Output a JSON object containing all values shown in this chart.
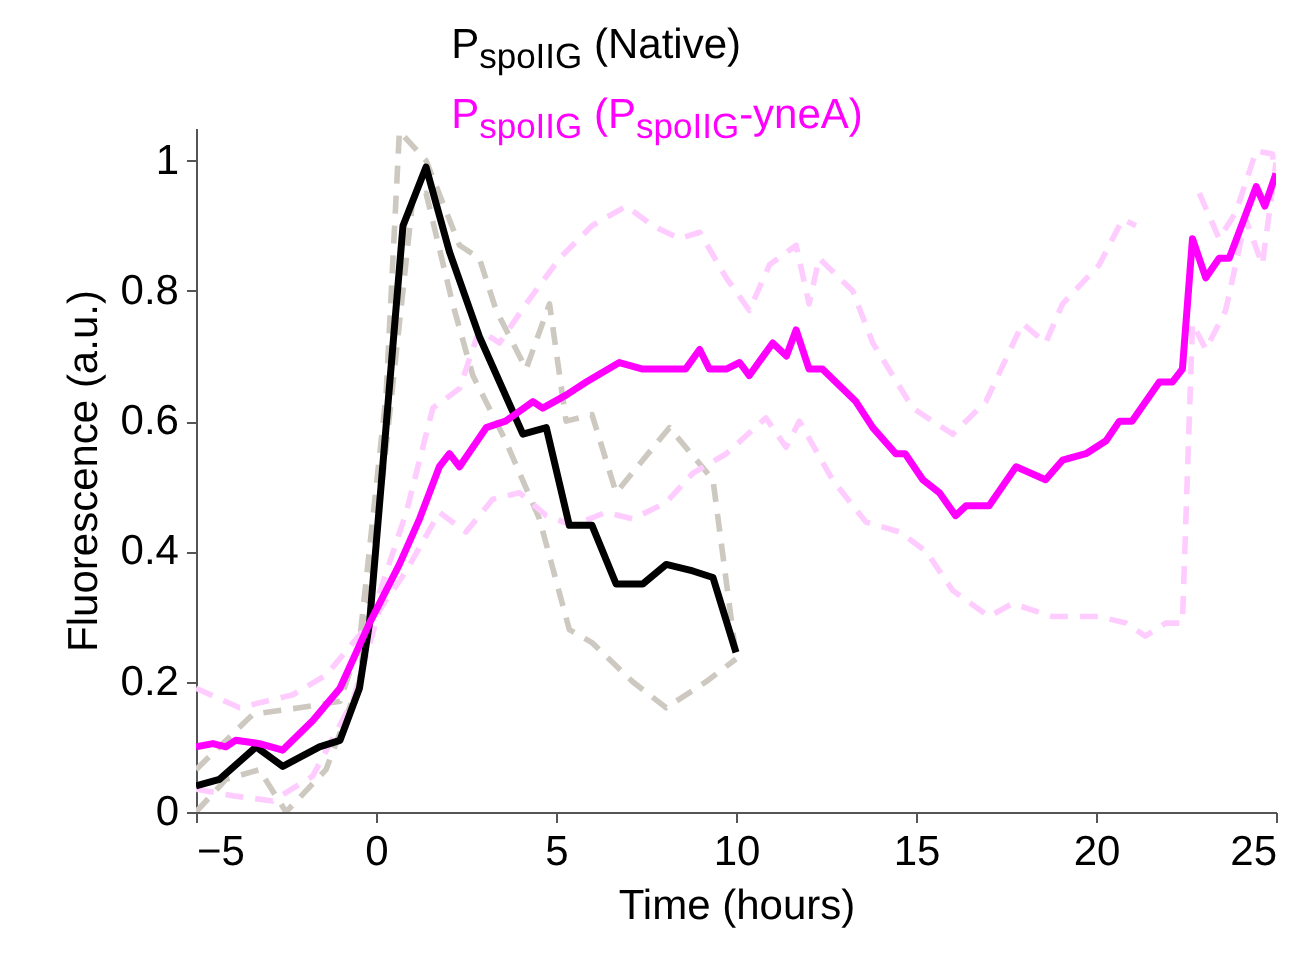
{
  "chart_data": {
    "type": "line",
    "xlabel": "Time (hours)",
    "ylabel": "Fluorescence (a.u.)",
    "xlim": [
      -5,
      25
    ],
    "xticks": [
      -5,
      0,
      5,
      10,
      15,
      20,
      25
    ],
    "ylim": [
      0,
      1.05
    ],
    "yticks": [
      0,
      0.2,
      0.4,
      0.6,
      0.8,
      1
    ],
    "grid": false,
    "legend": "top",
    "marker": "none",
    "series": [
      {
        "color": "#cdc8c0",
        "line_style": "dashed",
        "x": [
          -5,
          -3.42,
          -2.13,
          -1.0,
          -0.46,
          0.28,
          0.65,
          1.39,
          2.32,
          2.87,
          3.34,
          4.17,
          4.82,
          5.28,
          6.0,
          6.67,
          8.15,
          9.36,
          10.0
        ],
        "values": [
          0.065,
          0.15,
          0.16,
          0.17,
          0.26,
          0.64,
          1.045,
          1.0,
          0.87,
          0.85,
          0.77,
          0.68,
          0.78,
          0.6,
          0.61,
          0.49,
          0.59,
          0.51,
          0.24
        ]
      },
      {
        "color": "#cdc8c0",
        "line_style": "dashed",
        "x": [
          -5,
          -4.17,
          -3.24,
          -2.5,
          -1.39,
          -0.46,
          0.28,
          1.02,
          1.39,
          2.13,
          2.69,
          3.6,
          4.54,
          5.37,
          6.0,
          7.13,
          8.06,
          9.17,
          10.0
        ],
        "values": [
          0.0,
          0.05,
          0.065,
          0.0,
          0.065,
          0.2,
          0.56,
          0.94,
          0.95,
          0.78,
          0.67,
          0.57,
          0.45,
          0.28,
          0.26,
          0.2,
          0.16,
          0.2,
          0.235
        ]
      },
      {
        "color": "#ffccff",
        "line_style": "dashed",
        "x": [
          -5,
          -3.79,
          -2.31,
          -1.39,
          -0.18,
          0.84,
          1.58,
          2.32,
          2.87,
          3.43,
          4.17,
          5.1,
          6.0,
          6.95,
          7.69,
          8.43,
          8.99,
          9.73,
          10.37,
          10.93,
          11.67,
          12.03,
          12.31,
          13.24,
          13.8,
          14.91,
          15.46,
          16.02,
          16.94,
          17.96,
          18.6,
          19.07,
          20.09,
          20.74,
          21.11,
          21.65,
          22.4,
          22.87,
          23.42,
          23.88,
          24.45,
          24.9,
          25.0
        ],
        "values": [
          0.19,
          0.16,
          0.18,
          0.21,
          0.29,
          0.46,
          0.62,
          0.65,
          0.74,
          0.72,
          0.78,
          0.85,
          0.9,
          0.93,
          0.9,
          0.88,
          0.89,
          0.82,
          0.77,
          0.84,
          0.87,
          0.78,
          0.85,
          0.8,
          0.72,
          0.62,
          0.6,
          0.58,
          0.63,
          0.75,
          0.72,
          0.78,
          0.84,
          0.91,
          0.9,
          null,
          null,
          0.95,
          0.88,
          0.92,
          1.015,
          1.01,
          0.97
        ]
      },
      {
        "color": "#ffccff",
        "line_style": "dashed",
        "x": [
          -5,
          -3.98,
          -2.87,
          -1.76,
          -0.65,
          0.1,
          0.84,
          1.76,
          2.5,
          3.24,
          3.99,
          4.73,
          5.47,
          6.39,
          7.13,
          8.06,
          8.8,
          9.73,
          10.83,
          11.39,
          11.76,
          12.68,
          13.61,
          14.54,
          15.28,
          16.02,
          17.03,
          17.68,
          18.79,
          20.09,
          20.83,
          21.37,
          21.93,
          22.4,
          22.68,
          23.05,
          23.6,
          24.16,
          24.62,
          25.0
        ],
        "values": [
          0.035,
          0.025,
          0.017,
          0.055,
          0.17,
          0.31,
          0.37,
          0.46,
          0.43,
          0.48,
          0.49,
          0.455,
          0.44,
          0.46,
          0.45,
          0.475,
          0.52,
          0.55,
          0.605,
          0.56,
          0.6,
          0.51,
          0.445,
          0.43,
          0.4,
          0.34,
          0.3,
          0.32,
          0.3,
          0.3,
          0.29,
          0.27,
          0.29,
          0.29,
          0.75,
          0.71,
          0.77,
          0.91,
          0.84,
          0.997
        ]
      },
      {
        "name": "P$_{spoIIG}$ (Native)",
        "color": "#000000",
        "line_style": "solid",
        "x": [
          -5,
          -4.35,
          -3.33,
          -2.59,
          -1.57,
          -1.0,
          -0.46,
          -0.18,
          0.75,
          1.39,
          2.04,
          2.87,
          4.08,
          4.73,
          5.37,
          6.0,
          6.67,
          7.41,
          8.06,
          8.8,
          9.36,
          10.0
        ],
        "values": [
          0.04,
          0.05,
          0.1,
          0.07,
          0.1,
          0.11,
          0.19,
          0.29,
          0.9,
          0.99,
          0.86,
          0.73,
          0.58,
          0.59,
          0.44,
          0.44,
          0.35,
          0.35,
          0.38,
          0.37,
          0.36,
          0.245
        ]
      },
      {
        "name": "P$_{spoIIG}$ (P$_{spoIIG}$-yneA)",
        "color": "#ff00ff",
        "line_style": "solid",
        "x": [
          -5,
          -4.53,
          -4.17,
          -3.9,
          -3.24,
          -2.59,
          -2.13,
          -1.76,
          -1.0,
          -0.18,
          0.65,
          1.21,
          1.76,
          2.04,
          2.32,
          3.06,
          3.6,
          4.36,
          4.63,
          5.28,
          5.84,
          6.76,
          7.41,
          8.6,
          8.99,
          9.26,
          9.73,
          10.1,
          10.37,
          11.02,
          11.4,
          11.67,
          12.03,
          12.4,
          13.33,
          13.8,
          14.44,
          14.7,
          15.19,
          15.65,
          16.1,
          16.39,
          17.03,
          17.78,
          18.6,
          19.07,
          19.72,
          20.28,
          20.65,
          21.0,
          21.76,
          22.12,
          22.4,
          22.68,
          23.05,
          23.42,
          23.7,
          24.45,
          24.69,
          25.0
        ],
        "values": [
          0.1,
          0.105,
          0.1,
          0.11,
          0.105,
          0.095,
          0.12,
          0.14,
          0.19,
          0.29,
          0.38,
          0.45,
          0.53,
          0.55,
          0.53,
          0.59,
          0.6,
          0.63,
          0.62,
          0.64,
          0.66,
          0.69,
          0.68,
          0.68,
          0.71,
          0.68,
          0.68,
          0.69,
          0.67,
          0.72,
          0.7,
          0.74,
          0.68,
          0.68,
          0.63,
          0.59,
          0.55,
          0.55,
          0.51,
          0.49,
          0.455,
          0.47,
          0.47,
          0.53,
          0.51,
          0.54,
          0.55,
          0.57,
          0.6,
          0.6,
          0.66,
          0.66,
          0.68,
          0.88,
          0.82,
          0.85,
          0.85,
          0.96,
          0.93,
          0.98
        ]
      }
    ]
  }
}
